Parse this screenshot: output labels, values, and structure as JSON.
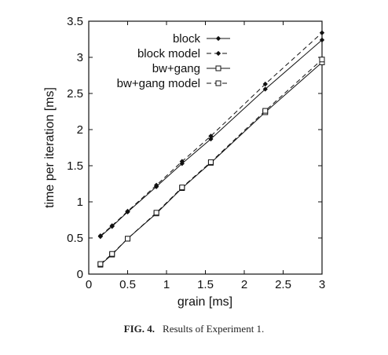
{
  "caption": {
    "label": "FIG. 4.",
    "text": "Results of Experiment 1."
  },
  "chart_data": {
    "type": "line",
    "title": "",
    "xlabel": "grain [ms]",
    "ylabel": "time per iteration [ms]",
    "xlim": [
      0,
      3
    ],
    "ylim": [
      0,
      3.5
    ],
    "xticks": [
      "0",
      "0.5",
      "1",
      "1.5",
      "2",
      "2.5",
      "3"
    ],
    "yticks": [
      "0",
      "0.5",
      "1",
      "1.5",
      "2",
      "2.5",
      "3",
      "3.5"
    ],
    "grid": false,
    "legend_position": "top-left",
    "series": [
      {
        "name": "block",
        "marker": "diamond",
        "dash": "solid",
        "x": [
          0.15,
          0.3,
          0.5,
          0.87,
          1.2,
          1.57,
          2.27,
          3.0
        ],
        "y": [
          0.52,
          0.66,
          0.86,
          1.21,
          1.53,
          1.87,
          2.56,
          3.24
        ]
      },
      {
        "name": "block model",
        "marker": "diamond",
        "dash": "dashed",
        "x": [
          0.15,
          0.3,
          0.5,
          0.87,
          1.2,
          1.57,
          2.27,
          3.0
        ],
        "y": [
          0.53,
          0.67,
          0.87,
          1.23,
          1.56,
          1.91,
          2.63,
          3.34
        ]
      },
      {
        "name": "bw+gang",
        "marker": "square",
        "dash": "solid",
        "x": [
          0.15,
          0.3,
          0.5,
          0.87,
          1.2,
          1.57,
          2.27,
          3.0
        ],
        "y": [
          0.13,
          0.27,
          0.49,
          0.84,
          1.19,
          1.54,
          2.24,
          2.93
        ]
      },
      {
        "name": "bw+gang model",
        "marker": "square",
        "dash": "dashed",
        "x": [
          0.15,
          0.3,
          0.5,
          0.87,
          1.2,
          1.57,
          2.27,
          3.0
        ],
        "y": [
          0.14,
          0.28,
          0.49,
          0.85,
          1.2,
          1.55,
          2.26,
          2.97
        ]
      }
    ]
  }
}
